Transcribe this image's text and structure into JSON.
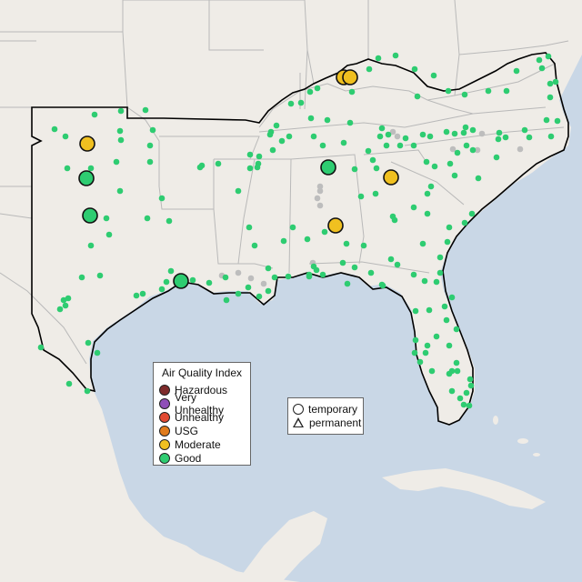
{
  "aqi_legend": {
    "title": "Air Quality Index",
    "items": [
      {
        "label": "Hazardous",
        "color": "#7e2b2b"
      },
      {
        "label": "Very Unhealthy",
        "color": "#8f4fb8"
      },
      {
        "label": "Unhealthy",
        "color": "#e24a33"
      },
      {
        "label": "USG",
        "color": "#e07b1c"
      },
      {
        "label": "Moderate",
        "color": "#f0c020"
      },
      {
        "label": "Good",
        "color": "#2ecc71"
      }
    ]
  },
  "type_legend": {
    "items": [
      {
        "label": "temporary",
        "icon": "circle-icon"
      },
      {
        "label": "permanent",
        "icon": "triangle-icon"
      }
    ]
  },
  "colors": {
    "water": "#c9d7e6",
    "land": "#efece7",
    "border": "#b9b9b9",
    "region_outline": "#000000",
    "good": "#2ecc71",
    "moderate": "#f0c020",
    "no_data": "#bdbdbd"
  }
}
